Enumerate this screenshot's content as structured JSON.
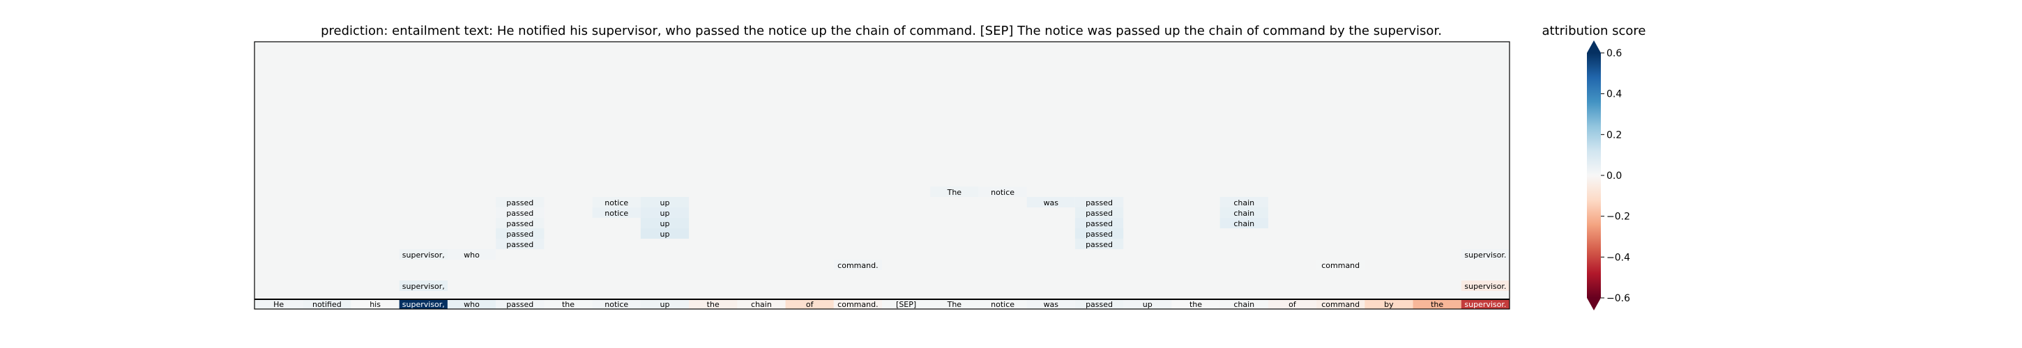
{
  "chart_data": [
    {
      "type": "heatmap",
      "title": "prediction:  entailment     text:  He notified his supervisor, who passed the notice up the chain of command. [SEP] The notice was passed up the chain of command by the supervisor.",
      "xlabel": "",
      "ylabel": "",
      "grid": false,
      "tokens": [
        "He",
        "notified",
        "his",
        "supervisor,",
        "who",
        "passed",
        "the",
        "notice",
        "up",
        "the",
        "chain",
        "of",
        "command.",
        "[SEP]",
        "The",
        "notice",
        "was",
        "passed",
        "up",
        "the",
        "chain",
        "of",
        "command",
        "by",
        "the",
        "supervisor."
      ],
      "token_scores": [
        0.02,
        0.03,
        0.0,
        0.6,
        0.05,
        0.02,
        0.01,
        0.02,
        0.03,
        -0.03,
        -0.01,
        -0.1,
        -0.02,
        0.01,
        0.01,
        0.01,
        0.02,
        0.03,
        0.02,
        0.0,
        0.01,
        -0.02,
        -0.04,
        -0.12,
        -0.2,
        -0.42
      ],
      "attention_stacks": [
        {
          "col": 3,
          "label": "supervisor,",
          "rows": [
            4
          ],
          "scores": [
            0.03
          ]
        },
        {
          "col": 3,
          "label": "supervisor,",
          "rows": [
            1
          ],
          "scores": [
            0.05
          ]
        },
        {
          "col": 4,
          "label": "who",
          "rows": [
            4
          ],
          "scores": [
            0.02
          ]
        },
        {
          "col": 5,
          "label": "passed",
          "rows": [
            9,
            8,
            7,
            6,
            5
          ],
          "scores": [
            0.03,
            0.02,
            0.03,
            0.05,
            0.04
          ]
        },
        {
          "col": 7,
          "label": "notice",
          "rows": [
            9,
            8
          ],
          "scores": [
            0.03,
            0.04
          ]
        },
        {
          "col": 8,
          "label": "up",
          "rows": [
            9,
            8,
            7,
            6
          ],
          "scores": [
            0.05,
            0.06,
            0.07,
            0.08
          ]
        },
        {
          "col": 12,
          "label": "command.",
          "rows": [
            3
          ],
          "scores": [
            0.02
          ]
        },
        {
          "col": 14,
          "label": "The",
          "rows": [
            10
          ],
          "scores": [
            0.03
          ]
        },
        {
          "col": 15,
          "label": "notice",
          "rows": [
            10
          ],
          "scores": [
            0.02
          ]
        },
        {
          "col": 16,
          "label": "was",
          "rows": [
            9
          ],
          "scores": [
            0.04
          ]
        },
        {
          "col": 17,
          "label": "passed",
          "rows": [
            9,
            8,
            7,
            6,
            5
          ],
          "scores": [
            0.04,
            0.05,
            0.06,
            0.07,
            0.05
          ]
        },
        {
          "col": 20,
          "label": "chain",
          "rows": [
            9,
            8,
            7
          ],
          "scores": [
            0.04,
            0.05,
            0.06
          ]
        },
        {
          "col": 22,
          "label": "command",
          "rows": [
            3
          ],
          "scores": [
            0.01
          ]
        },
        {
          "col": 25,
          "label": "supervisor.",
          "rows": [
            4
          ],
          "scores": [
            0.02
          ]
        },
        {
          "col": 25,
          "label": "supervisor.",
          "rows": [
            1
          ],
          "scores": [
            -0.05
          ]
        }
      ]
    },
    {
      "type": "colorbar",
      "title": "attribution score",
      "range": [
        -0.6,
        0.6
      ],
      "ticks": [
        -0.6,
        -0.4,
        -0.2,
        0.0,
        0.2,
        0.4,
        0.6
      ],
      "tick_labels": [
        "−0.6",
        "−0.4",
        "−0.2",
        "0.0",
        "0.2",
        "0.4",
        "0.6"
      ],
      "extend": "both",
      "colormap": "RdBu",
      "colors": {
        "negative": "#67001f",
        "neutral": "#f7f7f7",
        "positive": "#053061"
      }
    }
  ]
}
